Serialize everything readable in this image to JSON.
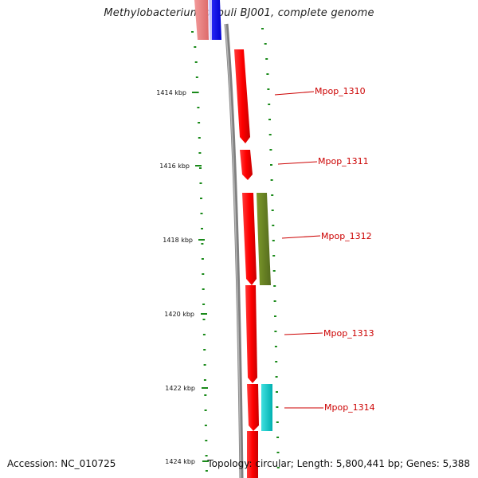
{
  "header": {
    "title": "Methylobacterium populi BJ001, complete genome"
  },
  "footer": {
    "accession": "Accession: NC_010725",
    "summary": "Topology: circular; Length: 5,800,441 bp; Genes: 5,388"
  },
  "axis": {
    "labels": [
      "1414 kbp",
      "1416 kbp",
      "1418 kbp",
      "1420 kbp",
      "1422 kbp",
      "1424 kbp"
    ]
  },
  "genes": [
    {
      "label": "Mpop_1310",
      "color": "#cc0000"
    },
    {
      "label": "Mpop_1311",
      "color": "#cc0000"
    },
    {
      "label": "Mpop_1312",
      "color": "#cc0000"
    },
    {
      "label": "Mpop_1313",
      "color": "#cc0000"
    },
    {
      "label": "Mpop_1314",
      "color": "#cc0000"
    }
  ],
  "colors": {
    "forward_cds": "#ff0000",
    "reverse_cds": "#0000ff",
    "pink_feature": "#e87a7a",
    "olive_feature": "#6b8e23",
    "cyan_feature": "#00c8c8",
    "backbone": "#808080",
    "tick": "#1a8a1a"
  }
}
